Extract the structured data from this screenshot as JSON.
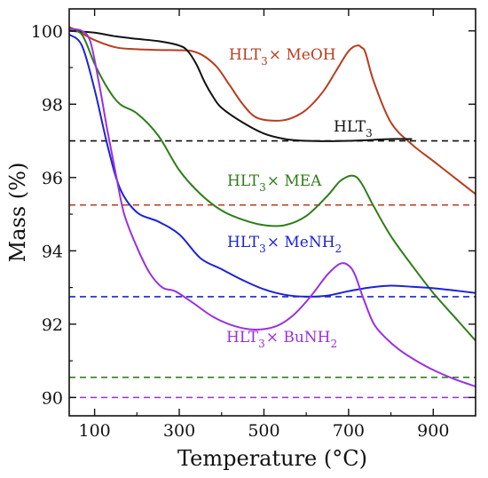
{
  "chart_data": {
    "type": "line",
    "xlabel": "Temperature (°C)",
    "ylabel": "Mass (%)",
    "xlim": [
      40,
      1000
    ],
    "ylim": [
      89.5,
      100.6
    ],
    "x_ticks": [
      100,
      300,
      500,
      700,
      900
    ],
    "x_tick_labels": [
      "100",
      "300",
      "500",
      "700",
      "900"
    ],
    "y_ticks": [
      90,
      92,
      94,
      96,
      98,
      100
    ],
    "y_tick_labels": [
      "90",
      "92",
      "94",
      "96",
      "98",
      "100"
    ],
    "grid": false,
    "legend": "inline labels",
    "series": [
      {
        "key": "meoh",
        "label_main": "HLT",
        "label_sub": "3",
        "label_rest": "× MeOH",
        "color": "#b83c1e",
        "x": [
          40,
          60,
          100,
          150,
          200,
          250,
          300,
          330,
          360,
          390,
          420,
          450,
          480,
          520,
          560,
          600,
          640,
          670,
          700,
          720,
          730,
          740,
          760,
          800,
          850,
          900,
          950,
          1000
        ],
        "y": [
          100.1,
          100.0,
          99.75,
          99.55,
          99.5,
          99.48,
          99.47,
          99.45,
          99.3,
          99.0,
          98.5,
          98.0,
          97.65,
          97.55,
          97.6,
          97.85,
          98.35,
          98.9,
          99.45,
          99.6,
          99.55,
          99.4,
          98.6,
          97.5,
          96.9,
          96.45,
          96.0,
          95.55
        ]
      },
      {
        "key": "hlt3",
        "label_main": "HLT",
        "label_sub": "3",
        "label_rest": "",
        "color": "#111111",
        "x": [
          40,
          100,
          150,
          200,
          250,
          300,
          320,
          340,
          360,
          380,
          400,
          450,
          500,
          550,
          600,
          700,
          800,
          850
        ],
        "y": [
          100.0,
          99.95,
          99.85,
          99.78,
          99.72,
          99.6,
          99.45,
          99.1,
          98.6,
          98.2,
          97.9,
          97.5,
          97.2,
          97.05,
          97.0,
          97.0,
          97.05,
          97.05
        ]
      },
      {
        "key": "mea",
        "label_main": "HLT",
        "label_sub": "3",
        "label_rest": "× MEA",
        "color": "#2e7d18",
        "x": [
          40,
          70,
          100,
          130,
          160,
          200,
          250,
          300,
          350,
          400,
          450,
          500,
          550,
          600,
          650,
          680,
          710,
          730,
          760,
          800,
          850,
          900,
          950,
          1000
        ],
        "y": [
          100.0,
          99.9,
          99.1,
          98.45,
          98.0,
          97.75,
          97.15,
          96.2,
          95.55,
          95.1,
          94.85,
          94.7,
          94.7,
          94.95,
          95.5,
          95.9,
          96.05,
          95.85,
          95.2,
          94.4,
          93.6,
          92.85,
          92.2,
          91.55
        ]
      },
      {
        "key": "menh2",
        "label_main": "HLT",
        "label_sub": "3",
        "label_rest": "× MeNH",
        "label_sub2": "2",
        "color": "#1c23d6",
        "x": [
          40,
          70,
          100,
          130,
          160,
          200,
          250,
          300,
          350,
          400,
          450,
          500,
          550,
          600,
          650,
          700,
          750,
          800,
          850,
          900,
          950,
          1000
        ],
        "y": [
          99.9,
          99.6,
          98.4,
          96.9,
          95.7,
          95.05,
          94.8,
          94.45,
          93.8,
          93.5,
          93.2,
          92.95,
          92.8,
          92.75,
          92.78,
          92.9,
          93.0,
          93.05,
          93.02,
          92.98,
          92.92,
          92.85
        ]
      },
      {
        "key": "bunh2",
        "label_main": "HLT",
        "label_sub": "3",
        "label_rest": "× BuNH",
        "label_sub2": "2",
        "color": "#9b30e0",
        "x": [
          40,
          70,
          90,
          110,
          130,
          150,
          170,
          200,
          230,
          260,
          290,
          330,
          380,
          430,
          480,
          530,
          570,
          610,
          650,
          680,
          700,
          715,
          735,
          760,
          790,
          820,
          860,
          900,
          950,
          1000
        ],
        "y": [
          100.05,
          100.0,
          99.7,
          98.6,
          97.3,
          96.1,
          95.0,
          94.1,
          93.4,
          93.0,
          92.9,
          92.6,
          92.2,
          91.95,
          91.85,
          91.95,
          92.25,
          92.75,
          93.35,
          93.65,
          93.6,
          93.35,
          92.7,
          92.0,
          91.6,
          91.3,
          91.0,
          90.75,
          90.5,
          90.3
        ]
      }
    ],
    "reference_lines": [
      {
        "y": 97.0,
        "color": "#111111"
      },
      {
        "y": 95.25,
        "color": "#b83c1e"
      },
      {
        "y": 92.75,
        "color": "#1c23d6"
      },
      {
        "y": 90.55,
        "color": "#2e7d18"
      },
      {
        "y": 90.0,
        "color": "#9b30e0"
      }
    ]
  }
}
